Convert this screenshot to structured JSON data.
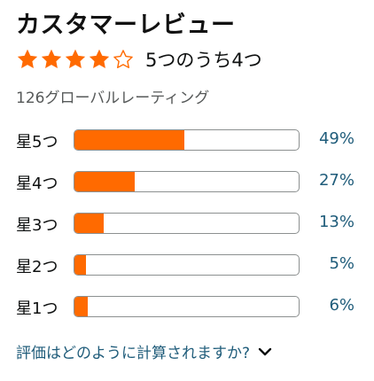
{
  "header": {
    "title": "カスタマーレビュー"
  },
  "summary": {
    "stars_filled": 4,
    "stars_total": 5,
    "rating_text": "5つのうち4つ",
    "global_ratings": "126グローバルレーティング",
    "star_fill_color": "#FF6A00",
    "star_empty_color": "#FF6A00"
  },
  "histogram": {
    "bar_color": "#FF6A00",
    "rows": [
      {
        "label": "星5つ",
        "percent_text": "49%",
        "percent": 49
      },
      {
        "label": "星4つ",
        "percent_text": "27%",
        "percent": 27
      },
      {
        "label": "星3つ",
        "percent_text": "13%",
        "percent": 13
      },
      {
        "label": "星2つ",
        "percent_text": "5%",
        "percent": 5
      },
      {
        "label": "星1つ",
        "percent_text": "6%",
        "percent": 6
      }
    ]
  },
  "footer": {
    "how_calculated": "評価はどのように計算されますか?",
    "chevron_icon": "chevron-down-icon"
  }
}
